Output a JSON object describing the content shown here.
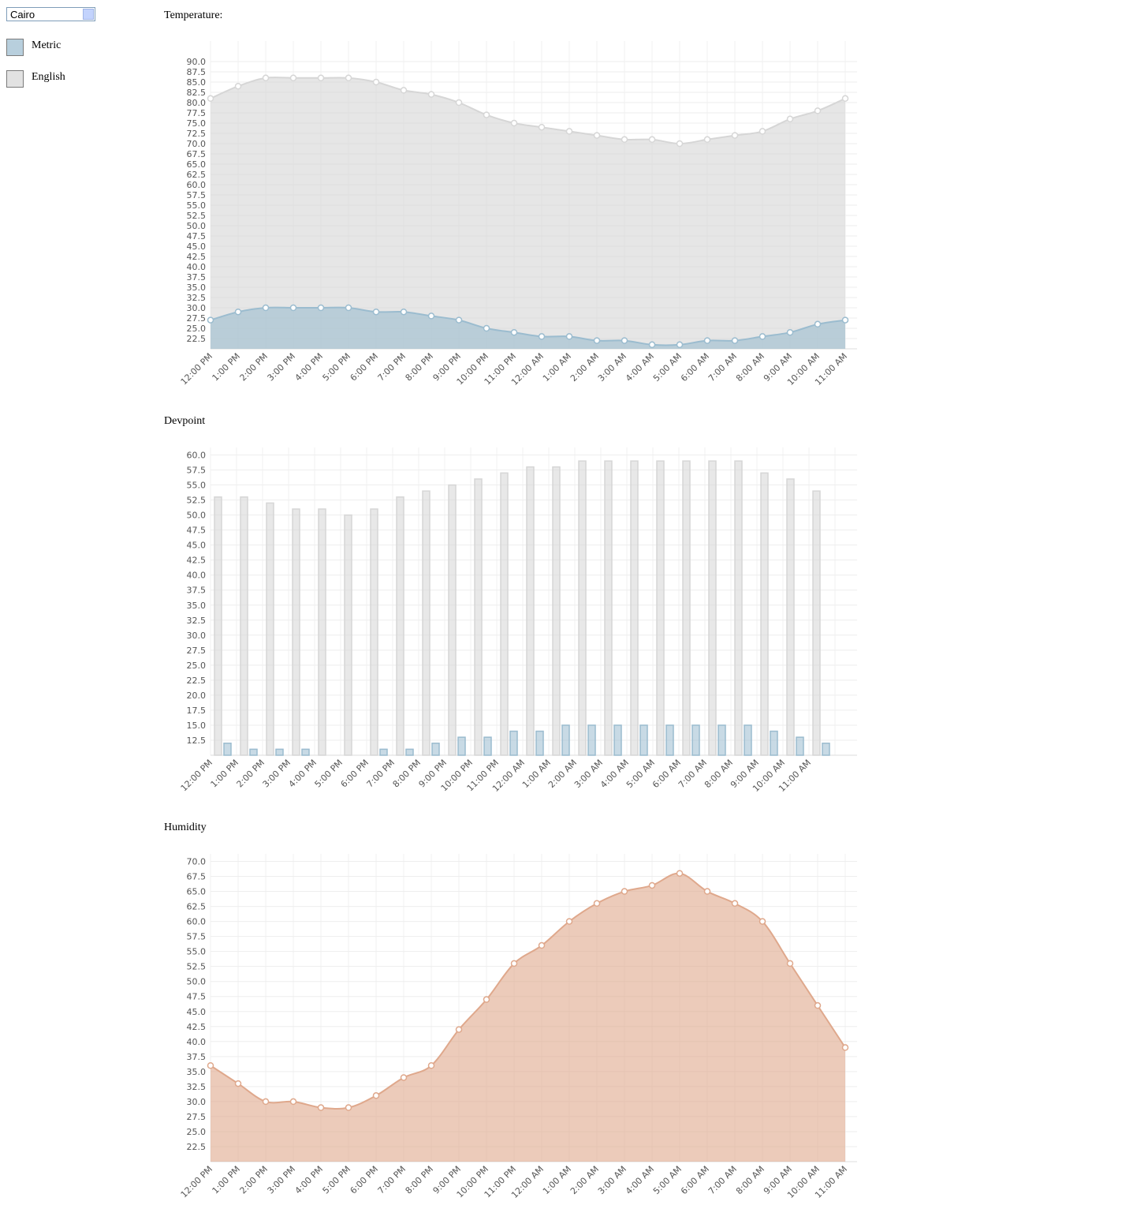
{
  "controls": {
    "city": "Cairo"
  },
  "chart_data": [
    {
      "type": "area",
      "title": "Temperature:",
      "categories": [
        "12:00 PM",
        "1:00 PM",
        "2:00 PM",
        "3:00 PM",
        "4:00 PM",
        "5:00 PM",
        "6:00 PM",
        "7:00 PM",
        "8:00 PM",
        "9:00 PM",
        "10:00 PM",
        "11:00 PM",
        "12:00 AM",
        "1:00 AM",
        "2:00 AM",
        "3:00 AM",
        "4:00 AM",
        "5:00 AM",
        "6:00 AM",
        "7:00 AM",
        "8:00 AM",
        "9:00 AM",
        "10:00 AM",
        "11:00 AM"
      ],
      "series": [
        {
          "name": "English",
          "color": "#d6d6d6",
          "values": [
            81,
            84,
            86,
            86,
            86,
            86,
            85,
            83,
            82,
            80,
            77,
            75,
            74,
            73,
            72,
            71,
            71,
            70,
            71,
            72,
            73,
            76,
            78,
            81
          ]
        },
        {
          "name": "Metric",
          "color": "#9bbccf",
          "values": [
            27,
            29,
            30,
            30,
            30,
            30,
            29,
            29,
            28,
            27,
            25,
            24,
            23,
            23,
            22,
            22,
            21,
            21,
            22,
            22,
            23,
            24,
            26,
            27
          ]
        }
      ],
      "ylim": [
        20,
        95
      ],
      "yticks": [
        22.5,
        {
          "value": 25,
          "label": "25.0"
        },
        27.5,
        {
          "value": 30,
          "label": "30.0"
        },
        32.5,
        {
          "value": 35,
          "label": "35.0"
        },
        37.5,
        {
          "value": 40,
          "label": "40.0"
        },
        42.5,
        {
          "value": 45,
          "label": "45.0"
        },
        47.5,
        {
          "value": 50,
          "label": "50.0"
        },
        52.5,
        {
          "value": 55,
          "label": "55.0"
        },
        57.5,
        {
          "value": 60,
          "label": "60.0"
        },
        62.5,
        {
          "value": 65,
          "label": "65.0"
        },
        67.5,
        {
          "value": 70,
          "label": "70.0"
        },
        72.5,
        {
          "value": 75,
          "label": "75.0"
        },
        77.5,
        {
          "value": 80,
          "label": "80.0"
        },
        82.5,
        {
          "value": 85,
          "label": "85.0"
        },
        87.5,
        {
          "value": 90,
          "label": "90.0"
        }
      ],
      "grid": true
    },
    {
      "type": "bar",
      "title": "Devpoint",
      "categories": [
        "12:00 PM",
        "1:00 PM",
        "2:00 PM",
        "3:00 PM",
        "4:00 PM",
        "5:00 PM",
        "6:00 PM",
        "7:00 PM",
        "8:00 PM",
        "9:00 PM",
        "10:00 PM",
        "11:00 PM",
        "12:00 AM",
        "1:00 AM",
        "2:00 AM",
        "3:00 AM",
        "4:00 AM",
        "5:00 AM",
        "6:00 AM",
        "7:00 AM",
        "8:00 AM",
        "9:00 AM",
        "10:00 AM",
        "11:00 AM"
      ],
      "series": [
        {
          "name": "English",
          "color": "#d6d6d6",
          "values": [
            53,
            53,
            52,
            51,
            51,
            50,
            51,
            53,
            54,
            55,
            56,
            57,
            58,
            58,
            59,
            59,
            59,
            59,
            59,
            59,
            59,
            57,
            56,
            54
          ]
        },
        {
          "name": "Metric",
          "color": "#9bbccf",
          "values": [
            12,
            11,
            11,
            11,
            10,
            10,
            11,
            11,
            12,
            13,
            13,
            14,
            14,
            15,
            15,
            15,
            15,
            15,
            15,
            15,
            15,
            14,
            13,
            12
          ]
        }
      ],
      "ylim": [
        10,
        61.25
      ],
      "yticks": [
        12.5,
        {
          "value": 15,
          "label": "15.0"
        },
        17.5,
        {
          "value": 20,
          "label": "20.0"
        },
        22.5,
        {
          "value": 25,
          "label": "25.0"
        },
        27.5,
        {
          "value": 30,
          "label": "30.0"
        },
        32.5,
        {
          "value": 35,
          "label": "35.0"
        },
        37.5,
        {
          "value": 40,
          "label": "40.0"
        },
        42.5,
        {
          "value": 45,
          "label": "45.0"
        },
        47.5,
        {
          "value": 50,
          "label": "50.0"
        },
        52.5,
        {
          "value": 55,
          "label": "55.0"
        },
        57.5,
        {
          "value": 60,
          "label": "60.0"
        }
      ],
      "grid": true
    },
    {
      "type": "area",
      "title": "Humidity",
      "categories": [
        "12:00 PM",
        "1:00 PM",
        "2:00 PM",
        "3:00 PM",
        "4:00 PM",
        "5:00 PM",
        "6:00 PM",
        "7:00 PM",
        "8:00 PM",
        "9:00 PM",
        "10:00 PM",
        "11:00 PM",
        "12:00 AM",
        "1:00 AM",
        "2:00 AM",
        "3:00 AM",
        "4:00 AM",
        "5:00 AM",
        "6:00 AM",
        "7:00 AM",
        "8:00 AM",
        "9:00 AM",
        "10:00 AM",
        "11:00 AM"
      ],
      "series": [
        {
          "color": "#dfa88c",
          "values": [
            36,
            33,
            30,
            30,
            29,
            29,
            31,
            34,
            36,
            42,
            47,
            53,
            56,
            60,
            63,
            65,
            66,
            68,
            65,
            63,
            60,
            53,
            46,
            39
          ]
        }
      ],
      "ylim": [
        20,
        71.25
      ],
      "yticks": [
        22.5,
        {
          "value": 25,
          "label": "25.0"
        },
        27.5,
        {
          "value": 30,
          "label": "30.0"
        },
        32.5,
        {
          "value": 35,
          "label": "35.0"
        },
        37.5,
        {
          "value": 40,
          "label": "40.0"
        },
        42.5,
        {
          "value": 45,
          "label": "45.0"
        },
        47.5,
        {
          "value": 50,
          "label": "50.0"
        },
        52.5,
        {
          "value": 55,
          "label": "55.0"
        },
        57.5,
        {
          "value": 60,
          "label": "60.0"
        },
        62.5,
        {
          "value": 65,
          "label": "65.0"
        },
        67.5,
        {
          "value": 70,
          "label": "70.0"
        }
      ],
      "grid": true
    }
  ]
}
